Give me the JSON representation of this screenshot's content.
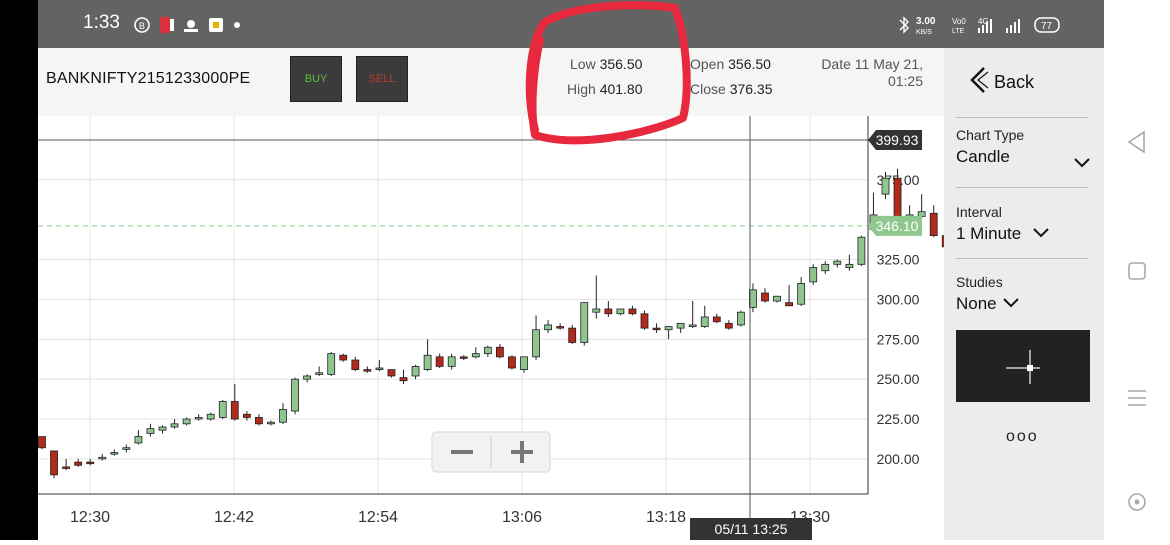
{
  "status": {
    "time": "1:33",
    "speed": "3.00",
    "speed_unit": "KB/S",
    "battery": "77"
  },
  "header": {
    "symbol": "BANKNIFTY2151233000PE",
    "buy_label": "BUY",
    "sell_label": "SELL",
    "low_label": "Low",
    "low_value": "356.50",
    "high_label": "High",
    "high_value": "401.80",
    "open_label": "Open",
    "open_value": "356.50",
    "close_label": "Close",
    "close_value": "376.35",
    "date_line1": "Date 11 May 21,",
    "date_line2": "01:25"
  },
  "sidebar": {
    "back_label": "Back",
    "chart_type_label": "Chart Type",
    "chart_type_value": "Candle",
    "interval_label": "Interval",
    "interval_value": "1 Minute",
    "studies_label": "Studies",
    "studies_value": "None",
    "more_label": "ooo"
  },
  "colors": {
    "up": "#8fc58f",
    "down": "#b22a1a",
    "accent": "#8fc88f",
    "annotation": "#e8283c"
  },
  "chart_data": {
    "type": "candlestick",
    "x_ticks": [
      "12:30",
      "12:42",
      "12:54",
      "13:06",
      "13:18",
      "13:30"
    ],
    "y_ticks": [
      "200.00",
      "225.00",
      "250.00",
      "275.00",
      "300.00",
      "325.00",
      "375.00"
    ],
    "ylim": [
      178,
      415
    ],
    "crosshair_price": "399.93",
    "crosshair_time": "05/11 13:25",
    "last_price": "346.10",
    "last_price_value": 346.1,
    "crosshair_value": 399.93,
    "candles": [
      [
        214,
        214,
        207,
        206
      ],
      [
        205,
        205,
        190,
        188
      ],
      [
        195,
        200,
        194,
        193
      ],
      [
        198,
        200,
        196,
        195
      ],
      [
        198,
        200,
        197,
        196
      ],
      [
        200,
        203,
        201,
        199
      ],
      [
        203,
        206,
        204,
        202
      ],
      [
        206,
        209,
        207,
        204
      ],
      [
        210,
        218,
        214,
        209
      ],
      [
        216,
        222,
        219,
        214
      ],
      [
        218,
        221,
        220,
        216
      ],
      [
        220,
        225,
        222,
        219
      ],
      [
        222,
        226,
        225,
        221
      ],
      [
        225,
        228,
        226,
        224
      ],
      [
        225,
        229,
        228,
        224
      ],
      [
        226,
        237,
        236,
        225
      ],
      [
        236,
        247,
        225,
        224
      ],
      [
        228,
        230,
        226,
        224
      ],
      [
        226,
        228,
        222,
        221
      ],
      [
        222,
        224,
        223,
        221
      ],
      [
        223,
        235,
        231,
        222
      ],
      [
        230,
        251,
        250,
        228
      ],
      [
        250,
        253,
        252,
        248
      ],
      [
        253,
        258,
        254,
        252
      ],
      [
        253,
        267,
        266,
        252
      ],
      [
        265,
        266,
        262,
        261
      ],
      [
        262,
        264,
        256,
        255
      ],
      [
        256,
        258,
        255,
        254
      ],
      [
        256,
        262,
        257,
        255
      ],
      [
        256,
        256,
        252,
        251
      ],
      [
        251,
        256,
        249,
        247
      ],
      [
        252,
        259,
        258,
        250
      ],
      [
        256,
        275,
        265,
        255
      ],
      [
        264,
        266,
        258,
        257
      ],
      [
        258,
        266,
        264,
        256
      ],
      [
        264,
        265,
        263,
        262
      ],
      [
        264,
        270,
        266,
        263
      ],
      [
        266,
        271,
        270,
        264
      ],
      [
        270,
        272,
        264,
        263
      ],
      [
        264,
        265,
        257,
        256
      ],
      [
        256,
        264,
        264,
        254
      ],
      [
        264,
        290,
        281,
        262
      ],
      [
        281,
        287,
        284,
        279
      ],
      [
        283,
        285,
        282,
        281
      ],
      [
        282,
        284,
        273,
        272
      ],
      [
        273,
        298,
        298,
        271
      ],
      [
        292,
        315,
        294,
        288
      ],
      [
        294,
        299,
        291,
        289
      ],
      [
        291,
        294,
        294,
        290
      ],
      [
        294,
        296,
        291,
        290
      ],
      [
        291,
        293,
        282,
        281
      ],
      [
        282,
        285,
        281,
        279
      ],
      [
        281,
        283,
        283,
        275
      ],
      [
        282,
        285,
        285,
        279
      ],
      [
        283,
        299,
        284,
        282
      ],
      [
        283,
        296,
        289,
        282
      ],
      [
        289,
        291,
        286,
        285
      ],
      [
        285,
        287,
        282,
        281
      ],
      [
        284,
        293,
        292,
        283
      ],
      [
        295,
        310,
        306,
        292
      ],
      [
        304,
        307,
        299,
        298
      ],
      [
        299,
        301,
        302,
        298
      ],
      [
        298,
        309,
        296,
        297
      ],
      [
        297,
        314,
        310,
        296
      ],
      [
        311,
        322,
        320,
        309
      ],
      [
        318,
        324,
        322,
        316
      ],
      [
        322,
        325,
        324,
        320
      ],
      [
        320,
        328,
        322,
        318
      ],
      [
        322,
        340,
        339,
        321
      ],
      [
        344,
        367,
        353,
        343
      ],
      [
        366,
        380,
        376,
        363
      ],
      [
        376,
        382,
        351,
        350
      ],
      [
        352,
        359,
        353,
        351
      ],
      [
        352,
        366,
        355,
        351
      ],
      [
        354,
        359,
        340,
        339
      ],
      [
        340,
        346,
        333,
        332
      ],
      [
        338,
        349,
        349,
        337
      ],
      [
        349,
        350,
        341,
        340
      ],
      [
        344,
        348,
        345,
        330
      ],
      [
        344,
        348,
        346,
        344
      ]
    ]
  }
}
